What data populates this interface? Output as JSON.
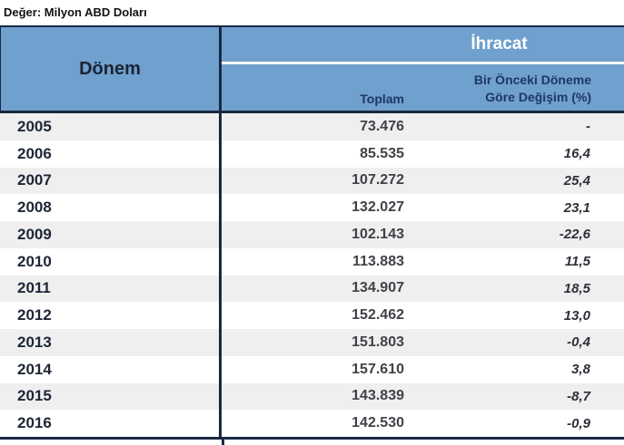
{
  "meta": {
    "unit_label": "Değer: Milyon ABD Doları"
  },
  "table": {
    "period_header": "Dönem",
    "group_header": "İhracat",
    "subheader": {
      "total_label": "Toplam",
      "change_label_line1": "Bir Önceki Döneme",
      "change_label_line2": "Göre Değişim (%)"
    },
    "rows": [
      {
        "year": "2005",
        "total": "73.476",
        "change": "-"
      },
      {
        "year": "2006",
        "total": "85.535",
        "change": "16,4"
      },
      {
        "year": "2007",
        "total": "107.272",
        "change": "25,4"
      },
      {
        "year": "2008",
        "total": "132.027",
        "change": "23,1"
      },
      {
        "year": "2009",
        "total": "102.143",
        "change": "-22,6"
      },
      {
        "year": "2010",
        "total": "113.883",
        "change": "11,5"
      },
      {
        "year": "2011",
        "total": "134.907",
        "change": "18,5"
      },
      {
        "year": "2012",
        "total": "152.462",
        "change": "13,0"
      },
      {
        "year": "2013",
        "total": "151.803",
        "change": "-0,4"
      },
      {
        "year": "2014",
        "total": "157.610",
        "change": "3,8"
      },
      {
        "year": "2015",
        "total": "143.839",
        "change": "-8,7"
      },
      {
        "year": "2016",
        "total": "142.530",
        "change": "-0,9"
      }
    ],
    "colors": {
      "header_blue": "#6FA0CE",
      "border_dark": "#1A2842",
      "subheader_text": "#1F3864",
      "stripe": "#EFEFF0"
    }
  }
}
